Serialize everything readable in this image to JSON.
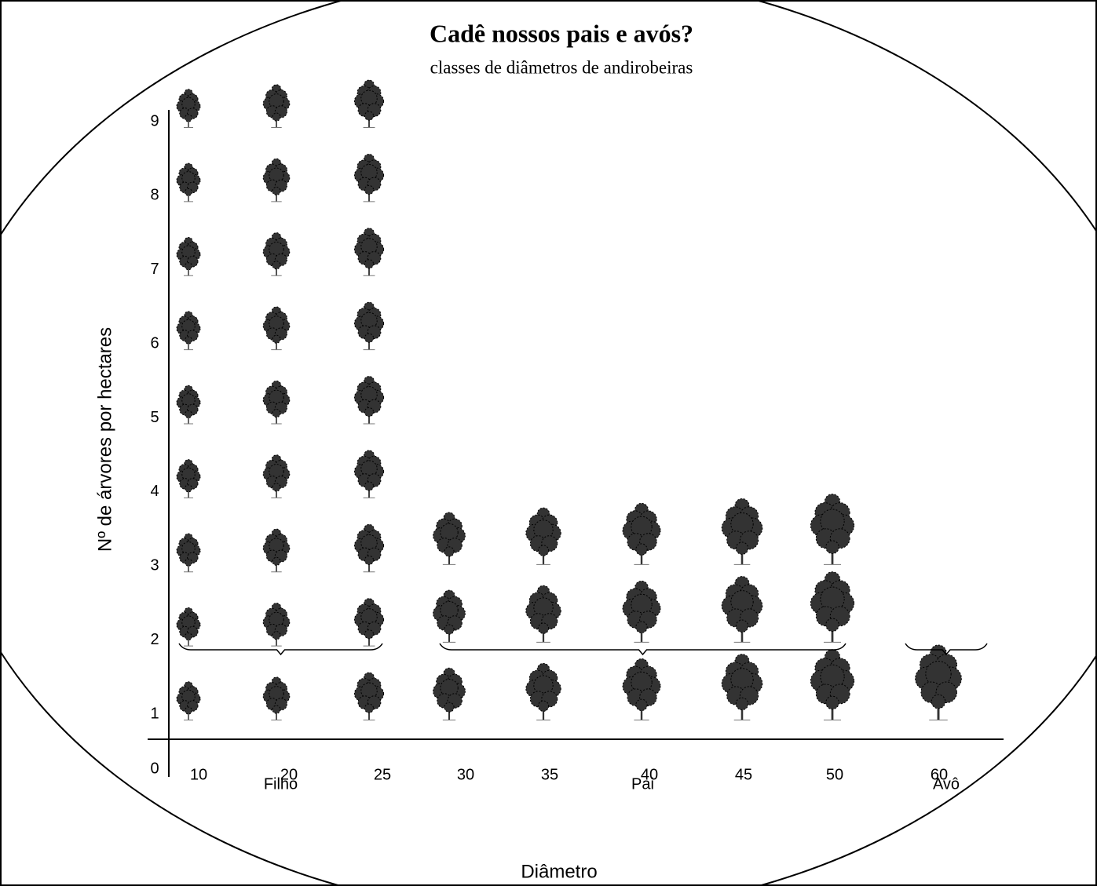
{
  "chart_data": {
    "type": "pictograph",
    "title": "Cadê nossos pais e avós?",
    "subtitle": "classes de diâmetros de andirobeiras",
    "x_label": "Diâmetro",
    "y_label": "Nº de árvores por hectares",
    "categories": [
      "10",
      "20",
      "25",
      "30",
      "35",
      "40",
      "45",
      "50",
      "60"
    ],
    "values": [
      9,
      9,
      9,
      3,
      3,
      3,
      3,
      3,
      1
    ],
    "groups": [
      {
        "name": "Filho",
        "categories": [
          "10",
          "20",
          "25"
        ]
      },
      {
        "name": "Pai",
        "categories": [
          "30",
          "35",
          "40",
          "45",
          "50"
        ]
      },
      {
        "name": "Avô",
        "categories": [
          "60"
        ]
      }
    ],
    "ylim": [
      0,
      9
    ],
    "yticks": [
      0,
      1,
      2,
      3,
      4,
      5,
      6,
      7,
      8,
      9
    ],
    "color": "#333333"
  }
}
